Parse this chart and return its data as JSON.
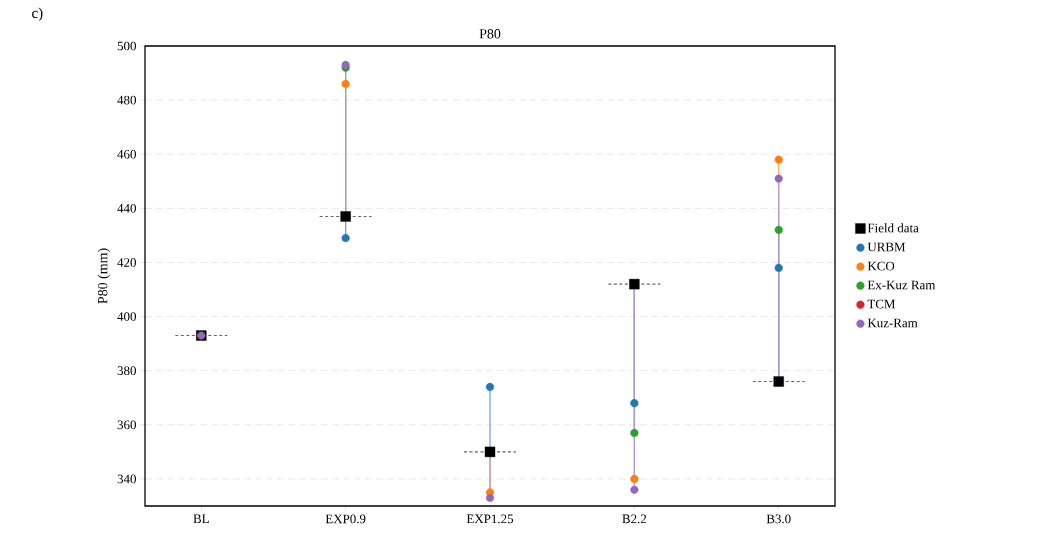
{
  "chart_data": {
    "type": "scatter",
    "title": "P80",
    "ylabel": "P80 (mm)",
    "annotations": [
      "c)"
    ],
    "categories": [
      "BL",
      "EXP0.9",
      "EXP1.25",
      "B2.2",
      "B3.0"
    ],
    "ylim": [
      330,
      500
    ],
    "yticks": [
      340,
      360,
      380,
      400,
      420,
      440,
      460,
      480,
      500
    ],
    "grid": "y",
    "legend": "right",
    "series": [
      {
        "name": "Field data",
        "marker": "square",
        "color": "#000000",
        "values": [
          393,
          437,
          350,
          412,
          376
        ]
      },
      {
        "name": "URBM",
        "type": "lollipop",
        "marker": "circle",
        "color": "#1f77b4",
        "values": [
          null,
          429,
          374,
          368,
          418
        ]
      },
      {
        "name": "KCO",
        "type": "lollipop",
        "marker": "circle",
        "color": "#ff7f0e",
        "values": [
          null,
          486,
          335,
          340,
          458
        ]
      },
      {
        "name": "Ex-Kuz Ram",
        "type": "lollipop",
        "marker": "circle",
        "color": "#2ca02c",
        "values": [
          null,
          492,
          null,
          357,
          432
        ]
      },
      {
        "name": "TCM",
        "type": "lollipop",
        "marker": "circle",
        "color": "#d62728",
        "values": [
          null,
          null,
          null,
          null,
          null
        ]
      },
      {
        "name": "Kuz-Ram",
        "type": "lollipop",
        "marker": "circle",
        "color": "#9467bd",
        "values": [
          393,
          493,
          333,
          336,
          451
        ]
      }
    ]
  }
}
